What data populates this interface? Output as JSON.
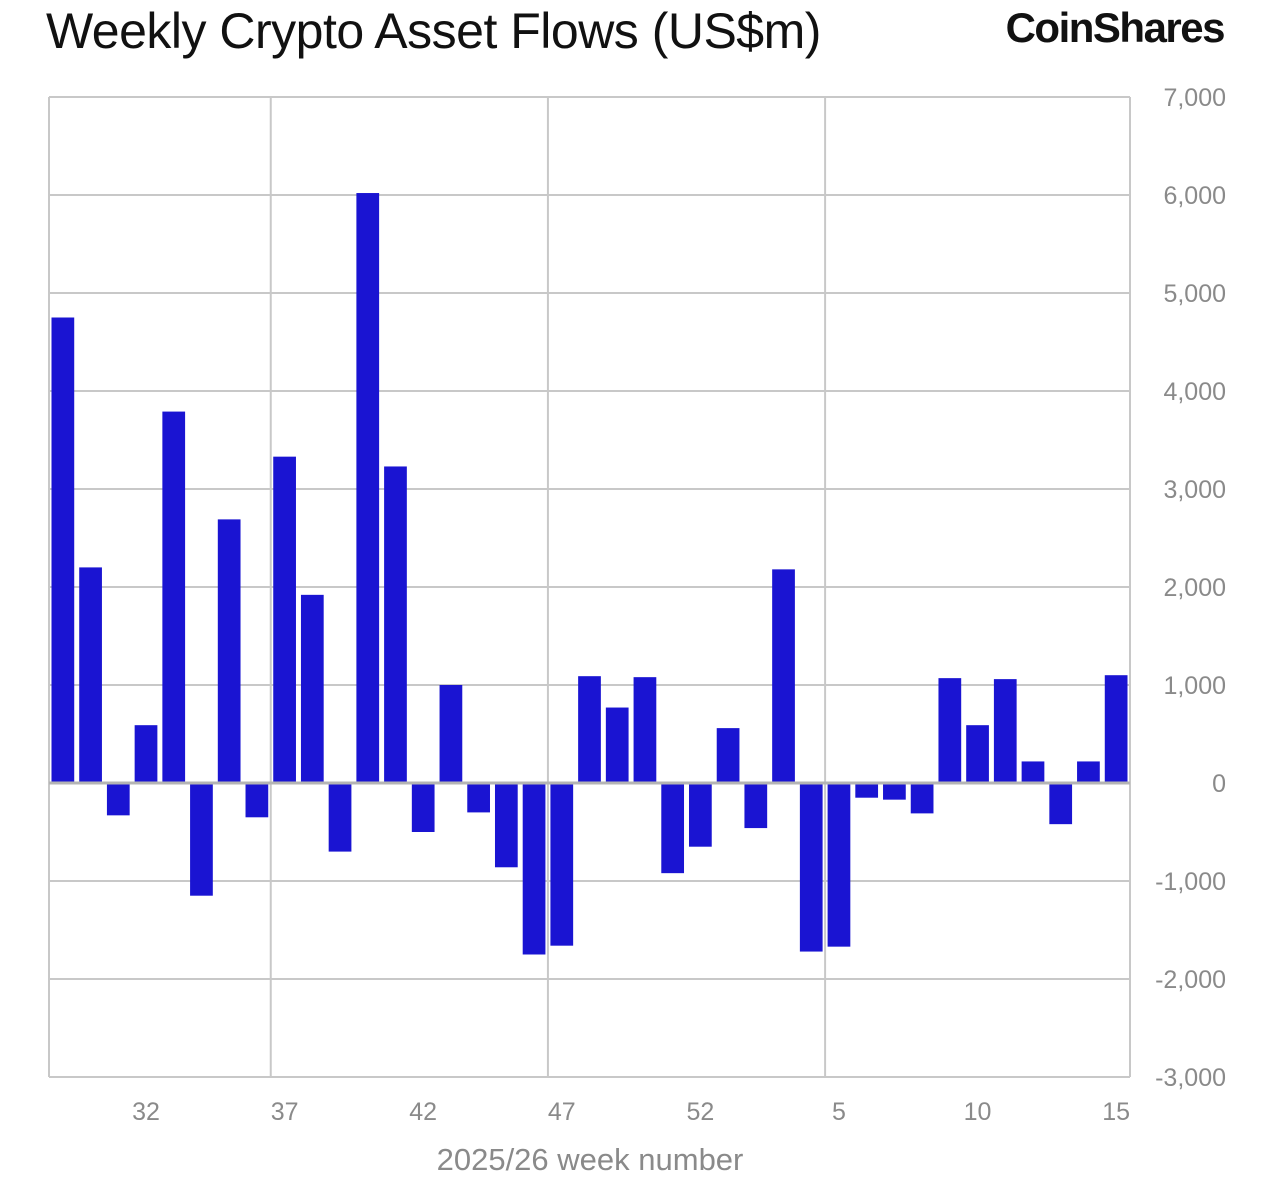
{
  "header": {
    "title": "Weekly Crypto Asset Flows (US$m)",
    "brand": "CoinShares"
  },
  "colors": {
    "bar": "#1a14d2",
    "grid": "#c8c8c8",
    "zero_line": "#b4b4b4",
    "text": "#8a8a8a"
  },
  "chart_data": {
    "type": "bar",
    "title": "Weekly Crypto Asset Flows (US$m)",
    "xlabel": "2025/26 week number",
    "ylabel": "",
    "ylim": [
      -3000,
      7000
    ],
    "yticks": [
      7000,
      6000,
      5000,
      4000,
      3000,
      2000,
      1000,
      0,
      -1000,
      -2000,
      -3000
    ],
    "ytick_labels": [
      "7,000",
      "6,000",
      "5,000",
      "4,000",
      "3,000",
      "2,000",
      "1,000",
      "0",
      "-1,000",
      "-2,000",
      "-3,000"
    ],
    "xtick_labels": [
      "32",
      "37",
      "42",
      "47",
      "52",
      "5",
      "10",
      "15"
    ],
    "xtick_bar_index": [
      3,
      8,
      13,
      18,
      23,
      28,
      33,
      38
    ],
    "vertical_grid_bar_index": [
      8,
      18,
      28
    ],
    "grid": true,
    "y_axis_position": "right",
    "categories": [
      "29",
      "30",
      "31",
      "32",
      "33",
      "34",
      "35",
      "36",
      "37",
      "38",
      "39",
      "40",
      "41",
      "42",
      "43",
      "44",
      "45",
      "46",
      "47",
      "48",
      "49",
      "50",
      "51",
      "52",
      "1",
      "2",
      "3",
      "4",
      "5",
      "6",
      "7",
      "8",
      "9",
      "10",
      "11",
      "12",
      "13",
      "14",
      "15"
    ],
    "values": [
      4750,
      2200,
      -330,
      590,
      3790,
      -1150,
      2690,
      -350,
      3330,
      1920,
      -700,
      6020,
      3230,
      -500,
      1000,
      -300,
      -860,
      -1750,
      -1660,
      1090,
      770,
      1080,
      -920,
      -650,
      560,
      -460,
      2180,
      -1720,
      -1670,
      -150,
      -170,
      -310,
      1070,
      590,
      1060,
      220,
      -420,
      220,
      1100
    ]
  }
}
